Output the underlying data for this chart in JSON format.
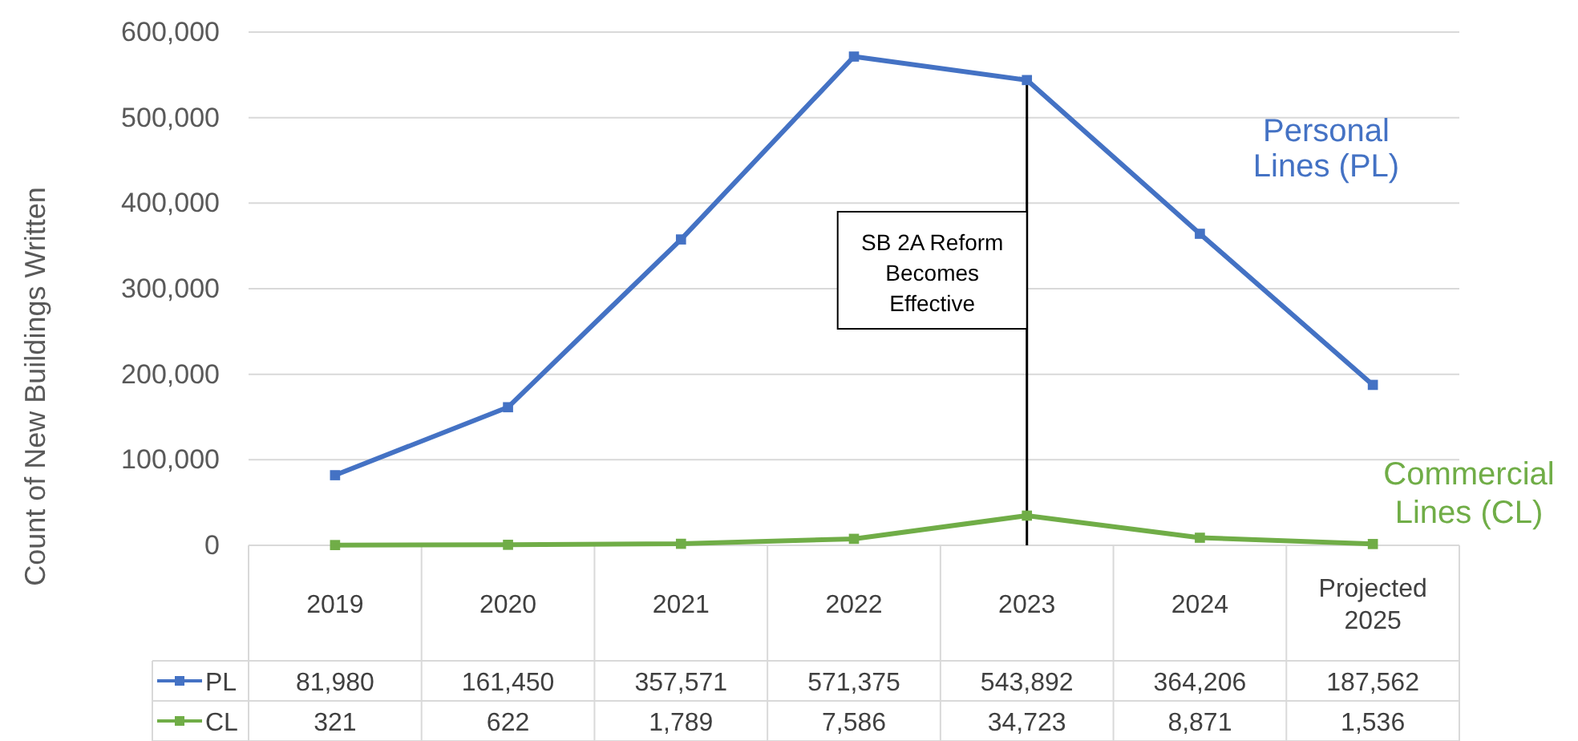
{
  "chart_data": {
    "type": "line",
    "ylabel": "Count of New Buildings Written",
    "categories": [
      "2019",
      "2020",
      "2021",
      "2022",
      "2023",
      "2024",
      "Projected 2025"
    ],
    "series": [
      {
        "name": "PL",
        "color": "#4472c4",
        "values": [
          81980,
          161450,
          357571,
          571375,
          543892,
          364206,
          187562
        ],
        "value_labels": [
          "81,980",
          "161,450",
          "357,571",
          "571,375",
          "543,892",
          "364,206",
          "187,562"
        ]
      },
      {
        "name": "CL",
        "color": "#70ad47",
        "values": [
          321,
          622,
          1789,
          7586,
          34723,
          8871,
          1536
        ],
        "value_labels": [
          "321",
          "622",
          "1,789",
          "7,586",
          "34,723",
          "8,871",
          "1,536"
        ]
      }
    ],
    "ylim": [
      0,
      600000
    ],
    "yticks": [
      {
        "value": 0,
        "label": "0"
      },
      {
        "value": 100000,
        "label": "100,000"
      },
      {
        "value": 200000,
        "label": "200,000"
      },
      {
        "value": 300000,
        "label": "300,000"
      },
      {
        "value": 400000,
        "label": "400,000"
      },
      {
        "value": 500000,
        "label": "500,000"
      },
      {
        "value": 600000,
        "label": "600,000"
      }
    ],
    "grid": "y",
    "marker": "square",
    "line_style": "solid",
    "legend": "bottom",
    "ref_lines": [
      {
        "axis": "x",
        "value": "2023",
        "label": "SB 2A Reform Becomes Effective",
        "color": "#000000"
      }
    ],
    "annotations": [
      "Personal Lines (PL)",
      "Commercial Lines (CL)"
    ]
  }
}
